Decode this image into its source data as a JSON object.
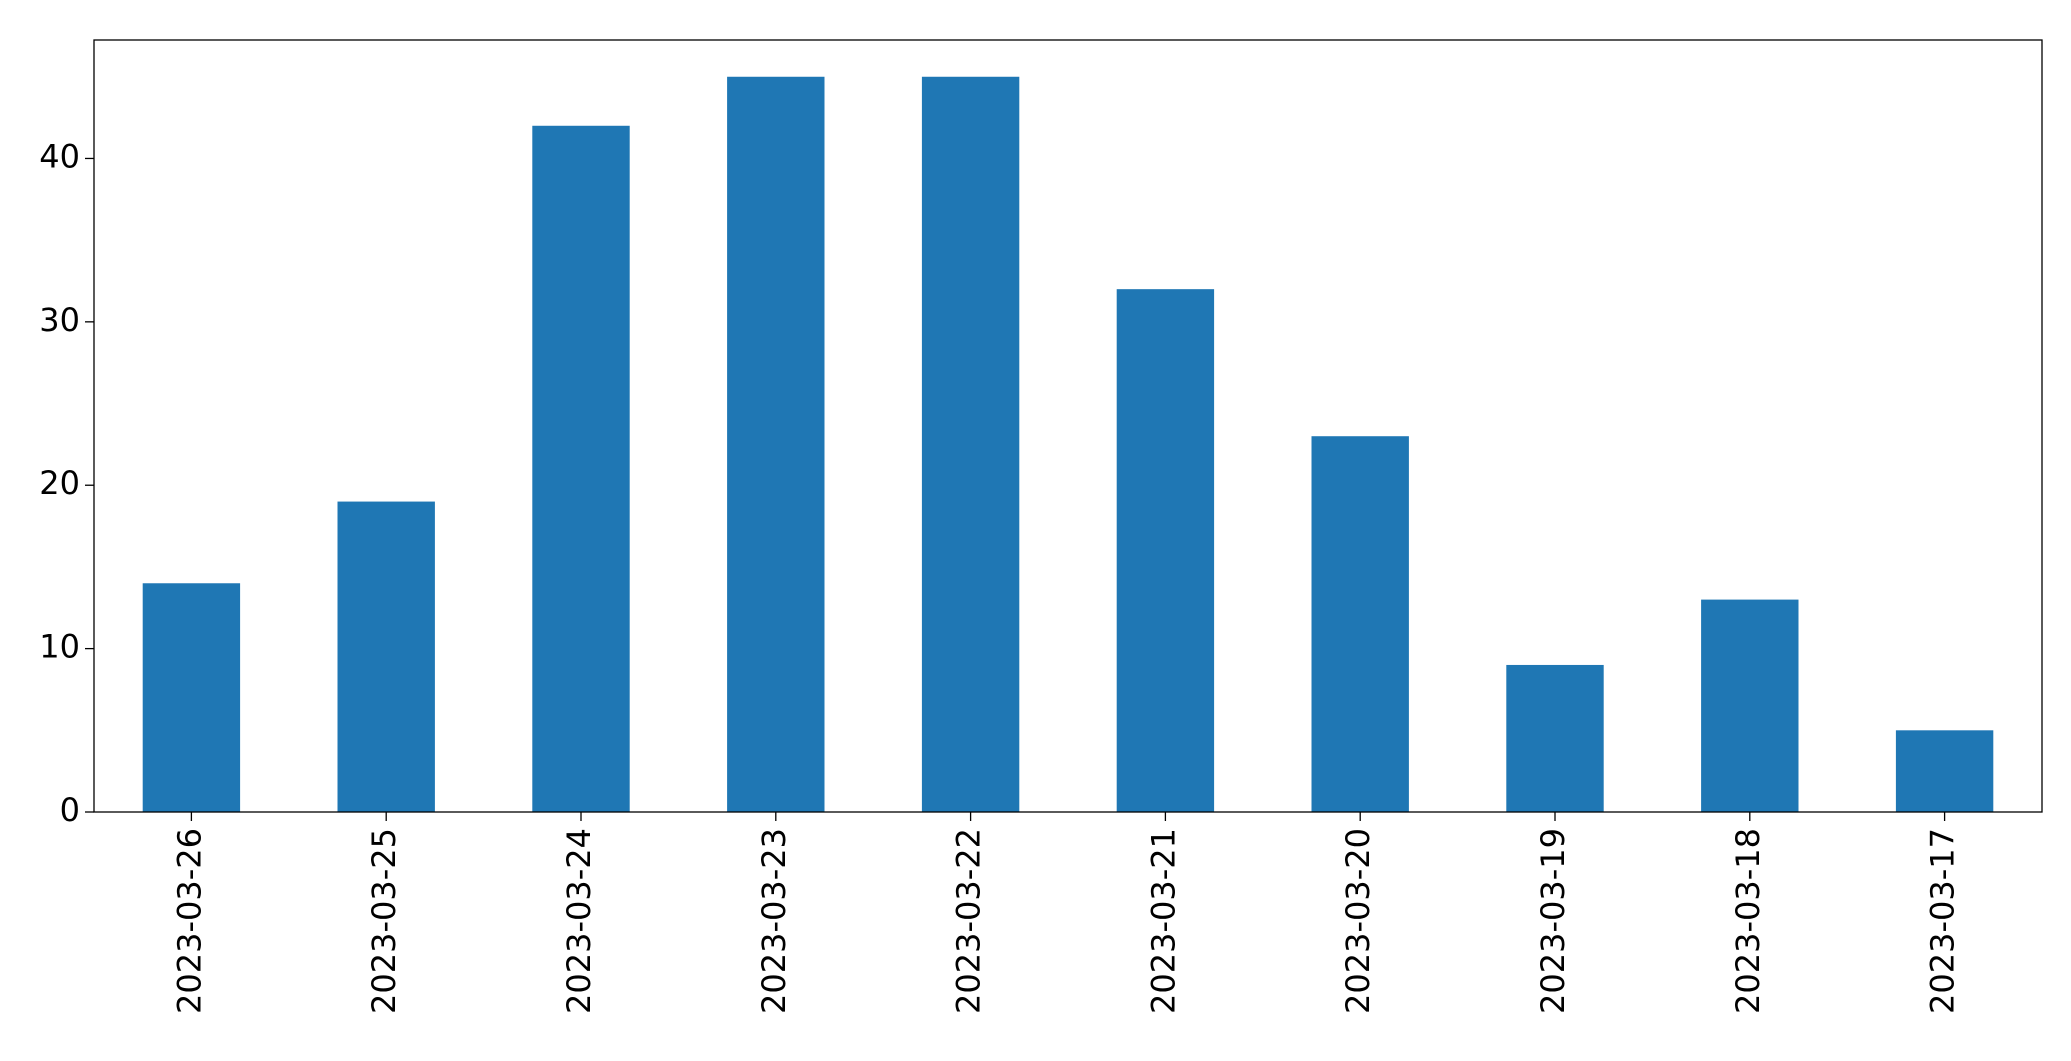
{
  "chart_data": {
    "type": "bar",
    "categories": [
      "2023-03-26",
      "2023-03-25",
      "2023-03-24",
      "2023-03-23",
      "2023-03-22",
      "2023-03-21",
      "2023-03-20",
      "2023-03-19",
      "2023-03-18",
      "2023-03-17"
    ],
    "values": [
      14,
      19,
      42,
      45,
      45,
      32,
      23,
      9,
      13,
      5
    ],
    "color": "#1f77b4",
    "ylim": [
      0,
      47.25
    ],
    "yticks": [
      0,
      10,
      20,
      30,
      40
    ],
    "grid": false
  }
}
